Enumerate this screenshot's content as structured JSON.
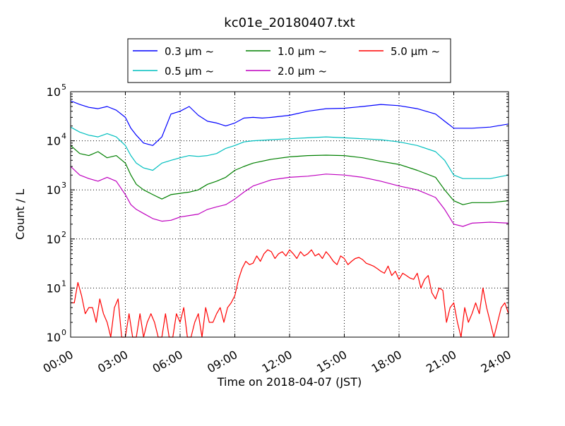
{
  "chart_data": {
    "type": "line",
    "title": "kc01e_20180407.txt",
    "xlabel": "Time on 2018-04-07 (JST)",
    "ylabel": "Count / L",
    "yscale": "log",
    "ylim": [
      1,
      100000
    ],
    "xlim_hours": [
      0,
      24
    ],
    "x_tick_labels": [
      "00:00",
      "03:00",
      "06:00",
      "09:00",
      "12:00",
      "15:00",
      "18:00",
      "21:00",
      "24:00"
    ],
    "y_tick_labels": [
      {
        "base": "10",
        "exp": "0"
      },
      {
        "base": "10",
        "exp": "1"
      },
      {
        "base": "10",
        "exp": "2"
      },
      {
        "base": "10",
        "exp": "3"
      },
      {
        "base": "10",
        "exp": "4"
      },
      {
        "base": "10",
        "exp": "5"
      }
    ],
    "grid": true,
    "legend_placement": "top-center (above plot)",
    "series": [
      {
        "name": "0.3 μm ~",
        "color": "#0000ff",
        "points": [
          [
            0,
            65000
          ],
          [
            0.5,
            55000
          ],
          [
            1,
            48000
          ],
          [
            1.5,
            45000
          ],
          [
            2,
            50000
          ],
          [
            2.5,
            42000
          ],
          [
            3,
            30000
          ],
          [
            3.3,
            18000
          ],
          [
            3.6,
            13000
          ],
          [
            4,
            9000
          ],
          [
            4.5,
            8000
          ],
          [
            5,
            12000
          ],
          [
            5.5,
            35000
          ],
          [
            6,
            40000
          ],
          [
            6.5,
            50000
          ],
          [
            7,
            33000
          ],
          [
            7.5,
            25000
          ],
          [
            8,
            23000
          ],
          [
            8.5,
            20000
          ],
          [
            9,
            23000
          ],
          [
            9.5,
            29000
          ],
          [
            10,
            30000
          ],
          [
            10.5,
            29000
          ],
          [
            11,
            30000
          ],
          [
            12,
            33000
          ],
          [
            13,
            40000
          ],
          [
            14,
            45000
          ],
          [
            15,
            46000
          ],
          [
            16,
            50000
          ],
          [
            17,
            55000
          ],
          [
            18,
            52000
          ],
          [
            19,
            45000
          ],
          [
            20,
            35000
          ],
          [
            20.5,
            25000
          ],
          [
            21,
            18000
          ],
          [
            22,
            18000
          ],
          [
            23,
            19000
          ],
          [
            24,
            22000
          ]
        ]
      },
      {
        "name": "0.5 μm ~",
        "color": "#00bfbf",
        "points": [
          [
            0,
            19000
          ],
          [
            0.5,
            15000
          ],
          [
            1,
            13000
          ],
          [
            1.5,
            12000
          ],
          [
            2,
            14000
          ],
          [
            2.5,
            12000
          ],
          [
            3,
            8000
          ],
          [
            3.3,
            5000
          ],
          [
            3.6,
            3500
          ],
          [
            4,
            2800
          ],
          [
            4.5,
            2500
          ],
          [
            5,
            3500
          ],
          [
            5.5,
            4000
          ],
          [
            6,
            4500
          ],
          [
            6.5,
            5000
          ],
          [
            7,
            4800
          ],
          [
            7.5,
            5000
          ],
          [
            8,
            5500
          ],
          [
            8.5,
            7000
          ],
          [
            9,
            8000
          ],
          [
            9.5,
            9500
          ],
          [
            10,
            10000
          ],
          [
            11,
            10500
          ],
          [
            12,
            11000
          ],
          [
            13,
            11500
          ],
          [
            14,
            12000
          ],
          [
            15,
            11500
          ],
          [
            16,
            11000
          ],
          [
            17,
            10500
          ],
          [
            18,
            9500
          ],
          [
            19,
            8000
          ],
          [
            20,
            6000
          ],
          [
            20.5,
            4000
          ],
          [
            21,
            2000
          ],
          [
            21.5,
            1700
          ],
          [
            22,
            1700
          ],
          [
            23,
            1700
          ],
          [
            24,
            2000
          ]
        ]
      },
      {
        "name": "1.0 μm ~",
        "color": "#008000",
        "points": [
          [
            0,
            8000
          ],
          [
            0.5,
            5500
          ],
          [
            1,
            5000
          ],
          [
            1.5,
            6000
          ],
          [
            2,
            4500
          ],
          [
            2.5,
            5000
          ],
          [
            3,
            3500
          ],
          [
            3.3,
            2000
          ],
          [
            3.6,
            1300
          ],
          [
            4,
            1000
          ],
          [
            4.5,
            800
          ],
          [
            5,
            650
          ],
          [
            5.5,
            800
          ],
          [
            6,
            850
          ],
          [
            6.5,
            900
          ],
          [
            7,
            1000
          ],
          [
            7.5,
            1300
          ],
          [
            8,
            1500
          ],
          [
            8.5,
            1800
          ],
          [
            9,
            2500
          ],
          [
            9.5,
            3000
          ],
          [
            10,
            3500
          ],
          [
            11,
            4200
          ],
          [
            12,
            4700
          ],
          [
            13,
            5000
          ],
          [
            14,
            5100
          ],
          [
            15,
            5000
          ],
          [
            16,
            4500
          ],
          [
            17,
            3800
          ],
          [
            18,
            3300
          ],
          [
            19,
            2500
          ],
          [
            20,
            1800
          ],
          [
            20.5,
            1000
          ],
          [
            21,
            600
          ],
          [
            21.5,
            500
          ],
          [
            22,
            550
          ],
          [
            23,
            550
          ],
          [
            24,
            600
          ]
        ]
      },
      {
        "name": "2.0 μm ~",
        "color": "#bf00bf",
        "points": [
          [
            0,
            3000
          ],
          [
            0.5,
            2000
          ],
          [
            1,
            1700
          ],
          [
            1.5,
            1500
          ],
          [
            2,
            1800
          ],
          [
            2.5,
            1500
          ],
          [
            3,
            800
          ],
          [
            3.3,
            500
          ],
          [
            3.6,
            400
          ],
          [
            4,
            330
          ],
          [
            4.5,
            260
          ],
          [
            5,
            230
          ],
          [
            5.5,
            240
          ],
          [
            6,
            280
          ],
          [
            6.5,
            300
          ],
          [
            7,
            320
          ],
          [
            7.5,
            400
          ],
          [
            8,
            450
          ],
          [
            8.5,
            500
          ],
          [
            9,
            650
          ],
          [
            9.5,
            900
          ],
          [
            10,
            1200
          ],
          [
            11,
            1600
          ],
          [
            12,
            1800
          ],
          [
            13,
            1900
          ],
          [
            14,
            2100
          ],
          [
            15,
            2000
          ],
          [
            16,
            1800
          ],
          [
            17,
            1500
          ],
          [
            18,
            1200
          ],
          [
            19,
            1000
          ],
          [
            20,
            700
          ],
          [
            20.5,
            400
          ],
          [
            21,
            200
          ],
          [
            21.5,
            180
          ],
          [
            22,
            210
          ],
          [
            23,
            220
          ],
          [
            24,
            210
          ]
        ]
      },
      {
        "name": "5.0 μm ~",
        "color": "#ff0000",
        "points": [
          [
            0,
            5
          ],
          [
            0.2,
            5
          ],
          [
            0.4,
            13
          ],
          [
            0.6,
            7
          ],
          [
            0.8,
            3
          ],
          [
            1,
            4
          ],
          [
            1.2,
            4
          ],
          [
            1.4,
            2
          ],
          [
            1.6,
            6
          ],
          [
            1.8,
            3
          ],
          [
            2,
            2
          ],
          [
            2.2,
            1
          ],
          [
            2.4,
            4
          ],
          [
            2.6,
            6
          ],
          [
            2.8,
            1
          ],
          [
            3,
            1
          ],
          [
            3.2,
            3
          ],
          [
            3.4,
            1
          ],
          [
            3.6,
            1
          ],
          [
            3.8,
            3
          ],
          [
            4,
            1
          ],
          [
            4.2,
            2
          ],
          [
            4.4,
            3
          ],
          [
            4.6,
            2
          ],
          [
            4.8,
            1
          ],
          [
            5,
            1
          ],
          [
            5.2,
            3
          ],
          [
            5.4,
            1
          ],
          [
            5.6,
            1
          ],
          [
            5.8,
            3
          ],
          [
            6,
            2
          ],
          [
            6.2,
            4
          ],
          [
            6.4,
            1
          ],
          [
            6.6,
            1
          ],
          [
            6.8,
            2
          ],
          [
            7,
            3
          ],
          [
            7.2,
            1
          ],
          [
            7.4,
            4
          ],
          [
            7.6,
            2
          ],
          [
            7.8,
            2
          ],
          [
            8,
            3
          ],
          [
            8.2,
            4
          ],
          [
            8.4,
            2
          ],
          [
            8.6,
            4
          ],
          [
            8.8,
            5
          ],
          [
            9,
            7
          ],
          [
            9.2,
            15
          ],
          [
            9.4,
            25
          ],
          [
            9.6,
            35
          ],
          [
            9.8,
            30
          ],
          [
            10,
            32
          ],
          [
            10.2,
            45
          ],
          [
            10.4,
            35
          ],
          [
            10.6,
            50
          ],
          [
            10.8,
            60
          ],
          [
            11,
            55
          ],
          [
            11.2,
            40
          ],
          [
            11.4,
            50
          ],
          [
            11.6,
            55
          ],
          [
            11.8,
            45
          ],
          [
            12,
            60
          ],
          [
            12.2,
            50
          ],
          [
            12.4,
            40
          ],
          [
            12.6,
            55
          ],
          [
            12.8,
            45
          ],
          [
            13,
            50
          ],
          [
            13.2,
            60
          ],
          [
            13.4,
            45
          ],
          [
            13.6,
            50
          ],
          [
            13.8,
            40
          ],
          [
            14,
            55
          ],
          [
            14.2,
            45
          ],
          [
            14.4,
            35
          ],
          [
            14.6,
            30
          ],
          [
            14.8,
            45
          ],
          [
            15,
            40
          ],
          [
            15.2,
            30
          ],
          [
            15.4,
            35
          ],
          [
            15.6,
            40
          ],
          [
            15.8,
            42
          ],
          [
            16,
            38
          ],
          [
            16.2,
            32
          ],
          [
            16.4,
            30
          ],
          [
            16.6,
            28
          ],
          [
            16.8,
            25
          ],
          [
            17,
            22
          ],
          [
            17.2,
            20
          ],
          [
            17.4,
            28
          ],
          [
            17.6,
            18
          ],
          [
            17.8,
            22
          ],
          [
            18,
            15
          ],
          [
            18.2,
            20
          ],
          [
            18.4,
            18
          ],
          [
            18.6,
            16
          ],
          [
            18.8,
            15
          ],
          [
            19,
            20
          ],
          [
            19.2,
            10
          ],
          [
            19.4,
            15
          ],
          [
            19.6,
            18
          ],
          [
            19.8,
            8
          ],
          [
            20,
            6
          ],
          [
            20.2,
            10
          ],
          [
            20.4,
            9
          ],
          [
            20.6,
            2
          ],
          [
            20.8,
            4
          ],
          [
            21,
            5
          ],
          [
            21.2,
            2
          ],
          [
            21.4,
            1
          ],
          [
            21.6,
            4
          ],
          [
            21.8,
            2
          ],
          [
            22,
            3
          ],
          [
            22.2,
            5
          ],
          [
            22.4,
            3
          ],
          [
            22.6,
            10
          ],
          [
            22.8,
            4
          ],
          [
            23,
            2
          ],
          [
            23.2,
            1
          ],
          [
            23.4,
            2
          ],
          [
            23.6,
            4
          ],
          [
            23.8,
            5
          ],
          [
            24,
            3
          ]
        ]
      }
    ]
  }
}
